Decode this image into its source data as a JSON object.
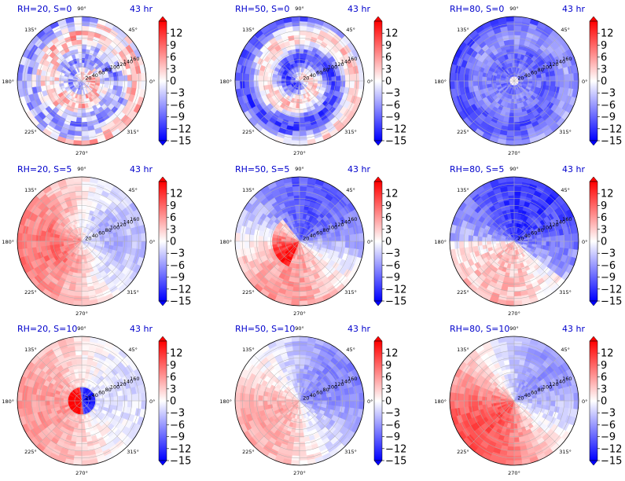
{
  "chart_data": {
    "type": "heatmap",
    "projection": "polar",
    "layout": "3x3 grid",
    "angular_ticks": [
      "90°",
      "45°",
      "0°",
      "315°",
      "270°",
      "225°",
      "180°",
      "135°"
    ],
    "radial_ticks": [
      "20",
      "40",
      "60",
      "80",
      "100",
      "120",
      "140",
      "160"
    ],
    "radial_max": 180,
    "grid": true,
    "colorbar": {
      "colormap": "bwr",
      "min": -15,
      "max": 15,
      "ticks": [
        "12",
        "9",
        "6",
        "3",
        "0",
        "−3",
        "−6",
        "−9",
        "−12",
        "−15"
      ],
      "extend": "both"
    },
    "panels": [
      {
        "label": "RH=20, S=0",
        "time": "43 hr",
        "RH": 20,
        "S": 0,
        "pattern": "scattered",
        "mean": -1
      },
      {
        "label": "RH=50, S=0",
        "time": "43 hr",
        "RH": 50,
        "S": 0,
        "pattern": "spiral-neg",
        "mean": -4
      },
      {
        "label": "RH=80, S=0",
        "time": "43 hr",
        "RH": 80,
        "S": 0,
        "pattern": "strong-neg",
        "mean": -7
      },
      {
        "label": "RH=20, S=5",
        "time": "43 hr",
        "RH": 20,
        "S": 5,
        "pattern": "dipole-pos-west",
        "mean": 2
      },
      {
        "label": "RH=50, S=5",
        "time": "43 hr",
        "RH": 50,
        "S": 5,
        "pattern": "dipole-neg-north",
        "mean": -2
      },
      {
        "label": "RH=80, S=5",
        "time": "43 hr",
        "RH": 80,
        "S": 5,
        "pattern": "strong-neg-north",
        "mean": -6
      },
      {
        "label": "RH=20, S=10",
        "time": "43 hr",
        "RH": 20,
        "S": 10,
        "pattern": "pos-west-neg-east",
        "mean": 2
      },
      {
        "label": "RH=50, S=10",
        "time": "43 hr",
        "RH": 50,
        "S": 10,
        "pattern": "neg-northeast",
        "mean": -1
      },
      {
        "label": "RH=80, S=10",
        "time": "43 hr",
        "RH": 80,
        "S": 10,
        "pattern": "pos-southwest-neg-northeast",
        "mean": 2
      }
    ]
  }
}
